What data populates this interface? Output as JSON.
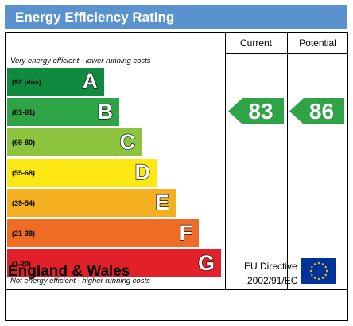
{
  "header": {
    "title": "Energy Efficiency Rating"
  },
  "columns": {
    "current": "Current",
    "potential": "Potential"
  },
  "notes": {
    "top": "Very energy efficient - lower running costs",
    "bottom": "Not energy efficient - higher running costs"
  },
  "footer": {
    "region": "England & Wales",
    "directive_line1": "EU Directive",
    "directive_line2": "2002/91/EC"
  },
  "chart_data": {
    "type": "bar",
    "title": "Energy Efficiency Rating",
    "bands": [
      {
        "letter": "A",
        "range": "(92 plus)",
        "color": "#0f8a3e"
      },
      {
        "letter": "B",
        "range": "(81-91)",
        "color": "#2ea447"
      },
      {
        "letter": "C",
        "range": "(69-80)",
        "color": "#8cc43f"
      },
      {
        "letter": "D",
        "range": "(55-68)",
        "color": "#fde813"
      },
      {
        "letter": "E",
        "range": "(39-54)",
        "color": "#f5b021"
      },
      {
        "letter": "F",
        "range": "(21-38)",
        "color": "#ee6c24"
      },
      {
        "letter": "G",
        "range": "(1-20)",
        "color": "#e2202a"
      }
    ],
    "current": {
      "value": 83,
      "band": "B",
      "color": "#2ea447"
    },
    "potential": {
      "value": 86,
      "band": "B",
      "color": "#2ea447"
    }
  }
}
